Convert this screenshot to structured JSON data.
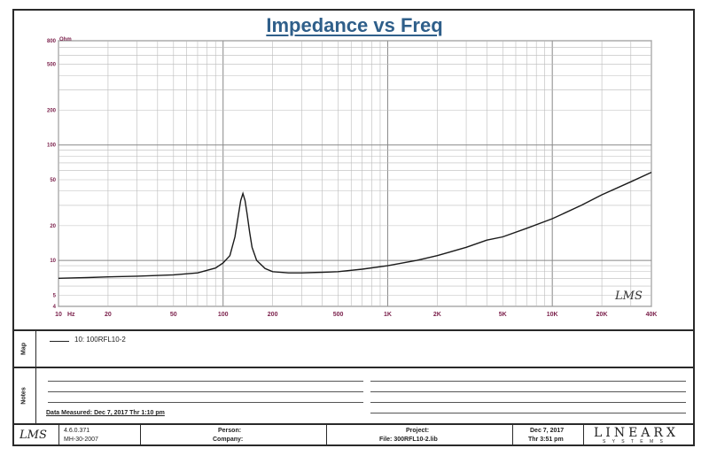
{
  "title": "Impedance vs Freq",
  "logo_text": "LMS",
  "chart_data": {
    "type": "line",
    "title": "Impedance vs Freq",
    "xlabel": "Hz",
    "ylabel": "Ohm",
    "x_scale": "log",
    "y_scale": "log",
    "xlim": [
      10,
      40000
    ],
    "ylim": [
      4,
      800
    ],
    "x_ticks": [
      10,
      20,
      50,
      100,
      200,
      500,
      1000,
      2000,
      5000,
      10000,
      20000,
      40000
    ],
    "x_tick_labels": [
      "10",
      "20",
      "50",
      "100",
      "200",
      "500",
      "1K",
      "2K",
      "5K",
      "10K",
      "20K",
      "40K"
    ],
    "y_ticks": [
      4,
      5,
      10,
      20,
      50,
      100,
      200,
      500,
      800
    ],
    "y_tick_labels": [
      "4",
      "5",
      "10",
      "20",
      "50",
      "100",
      "200",
      "500",
      "800"
    ],
    "grid": true,
    "series": [
      {
        "name": "10: 100RFL10-2",
        "x": [
          10,
          15,
          20,
          30,
          50,
          70,
          90,
          100,
          110,
          118,
          124,
          128,
          132,
          136,
          140,
          145,
          150,
          160,
          180,
          200,
          250,
          300,
          400,
          500,
          700,
          1000,
          1500,
          2000,
          3000,
          4000,
          5000,
          7000,
          10000,
          15000,
          20000,
          30000,
          40000
        ],
        "y": [
          7.0,
          7.1,
          7.2,
          7.3,
          7.5,
          7.8,
          8.6,
          9.5,
          11.0,
          16.0,
          25.0,
          33.0,
          38.0,
          33.0,
          25.0,
          17.5,
          13.0,
          10.0,
          8.5,
          8.0,
          7.8,
          7.8,
          7.9,
          8.0,
          8.4,
          9.0,
          10.0,
          11.0,
          13.0,
          15.0,
          16.0,
          19.0,
          23.0,
          30.0,
          37.0,
          48.0,
          58.0
        ]
      }
    ]
  },
  "map_legend": "10: 100RFL10-2",
  "map_label": "Map",
  "notes_label": "Notes",
  "data_measured": "Data Measured: Dec 7, 2017   Thr  1:10 pm",
  "footer": {
    "logo": "LMS",
    "version": "4.6.0.371",
    "version_date": "MH-30-2007",
    "person_label": "Person:",
    "company_label": "Company:",
    "project_label": "Project:",
    "file_label": "File: 300RFL10-2.lib",
    "date": "Dec 7, 2017",
    "time": "Thr  3:51 pm",
    "brand": "LINEARX",
    "brand_sub": "S Y S T E M S"
  }
}
